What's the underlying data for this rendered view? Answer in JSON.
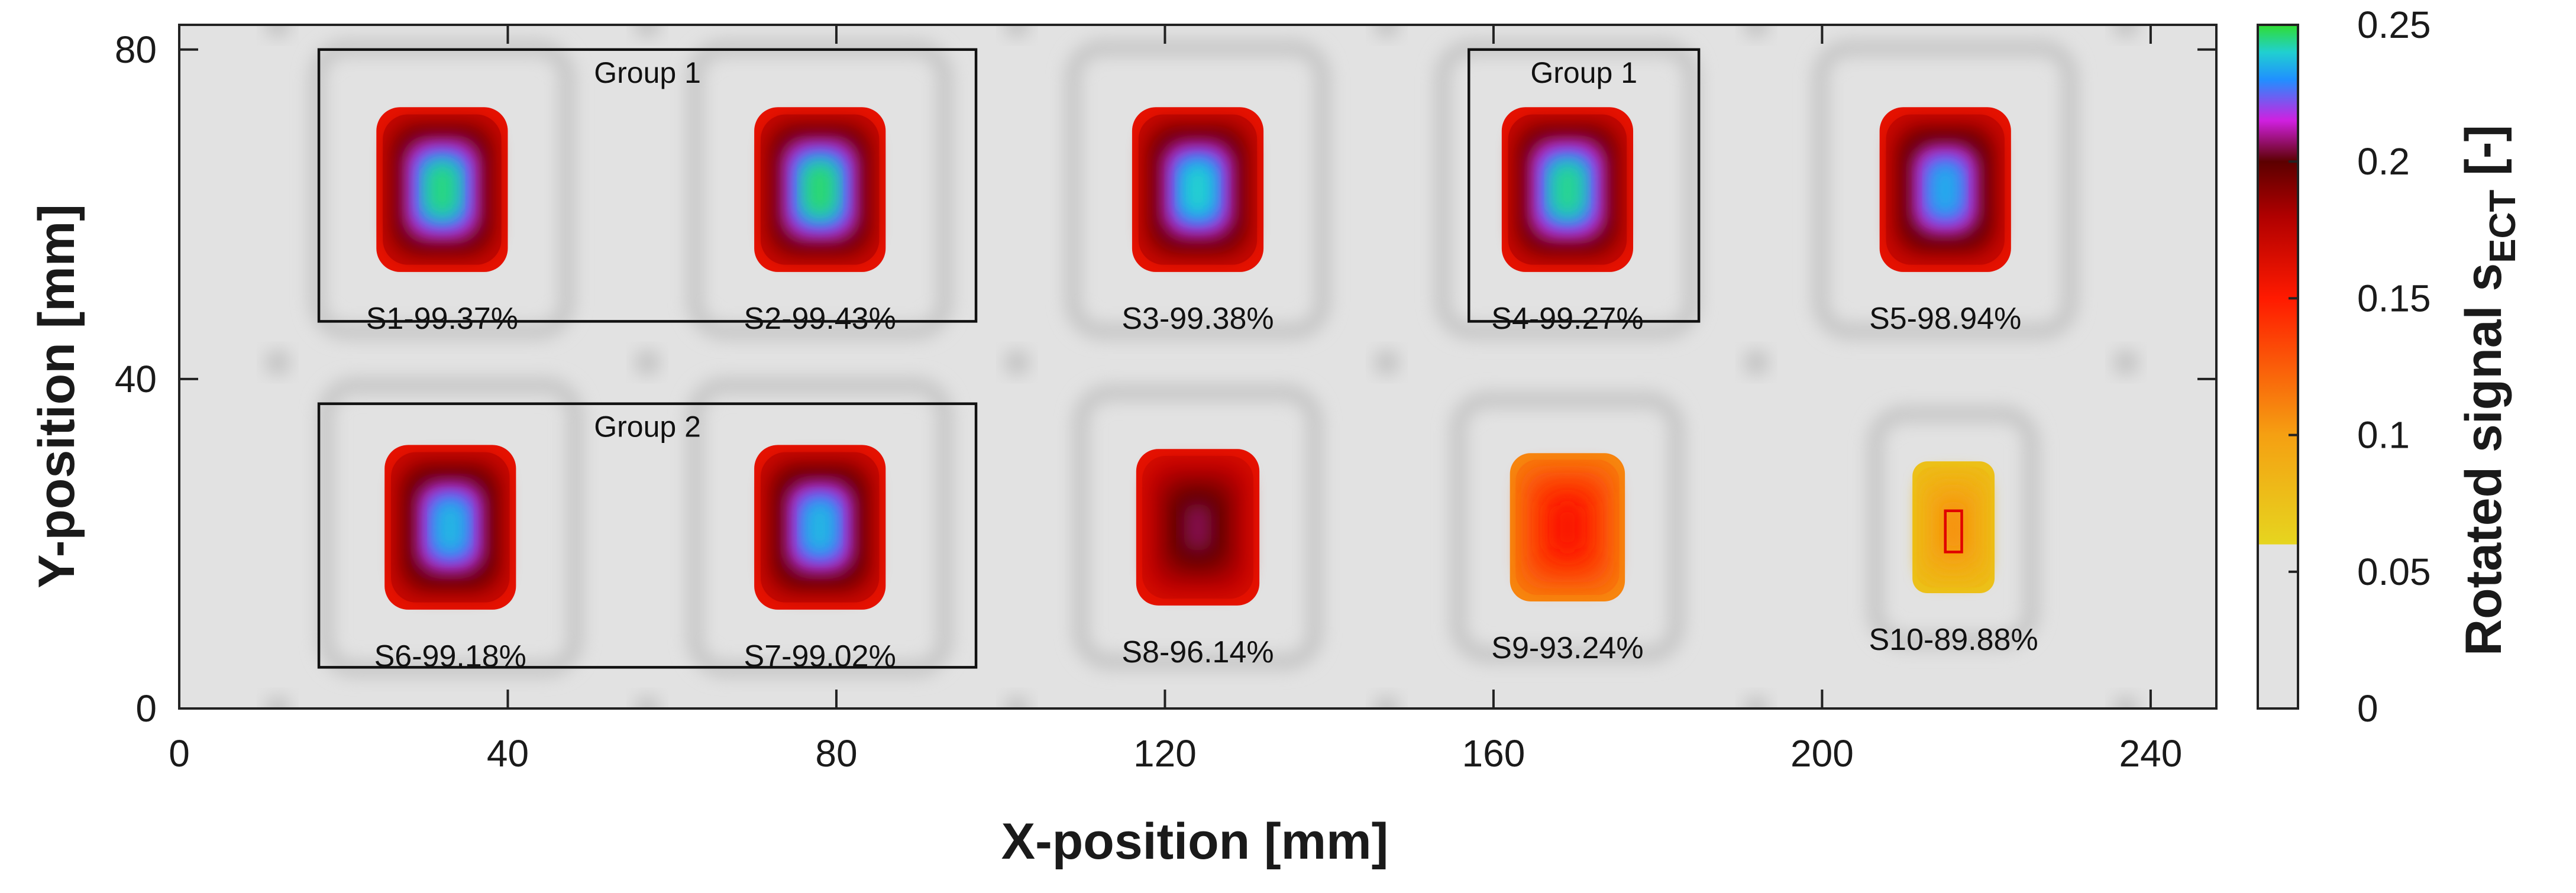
{
  "chart_data": {
    "type": "heatmap",
    "title": "",
    "xlabel": "X-position [mm]",
    "ylabel": "Y-position [mm]",
    "xlim": [
      0,
      248
    ],
    "ylim": [
      0,
      83
    ],
    "xticks": [
      0,
      40,
      80,
      120,
      160,
      200,
      240
    ],
    "yticks": [
      0,
      40,
      80
    ],
    "grid": false,
    "colorbar": {
      "label_main": "Rotated signal s",
      "label_sub": "ECT",
      "label_unit": " [-]",
      "range": [
        0,
        0.25
      ],
      "ticks": [
        "0",
        "0.05",
        "0.1",
        "0.15",
        "0.2",
        "0.25"
      ],
      "threshold": 0.06,
      "low_color": "#e2e2e2",
      "stops": [
        {
          "v": 0.06,
          "color": "#e6d51f"
        },
        {
          "v": 0.1,
          "color": "#f5a012"
        },
        {
          "v": 0.15,
          "color": "#ff1a00"
        },
        {
          "v": 0.18,
          "color": "#b00000"
        },
        {
          "v": 0.2,
          "color": "#5c0000"
        },
        {
          "v": 0.215,
          "color": "#d020e0"
        },
        {
          "v": 0.23,
          "color": "#2090ff"
        },
        {
          "v": 0.24,
          "color": "#20d0d0"
        },
        {
          "v": 0.25,
          "color": "#30dd30"
        }
      ]
    },
    "samples": [
      {
        "id": "S1",
        "label": "S1-99.37%",
        "x": 32,
        "y": 63,
        "w": 16,
        "h": 20,
        "peak": 0.245,
        "edge": 0.16
      },
      {
        "id": "S2",
        "label": "S2-99.43%",
        "x": 78,
        "y": 63,
        "w": 16,
        "h": 20,
        "peak": 0.246,
        "edge": 0.16
      },
      {
        "id": "S3",
        "label": "S3-99.38%",
        "x": 124,
        "y": 63,
        "w": 16,
        "h": 20,
        "peak": 0.24,
        "edge": 0.16
      },
      {
        "id": "S4",
        "label": "S4-99.27%",
        "x": 169,
        "y": 63,
        "w": 16,
        "h": 20,
        "peak": 0.244,
        "edge": 0.16
      },
      {
        "id": "S5",
        "label": "S5-98.94%",
        "x": 215,
        "y": 63,
        "w": 16,
        "h": 20,
        "peak": 0.234,
        "edge": 0.16
      },
      {
        "id": "S6",
        "label": "S6-99.18%",
        "x": 33,
        "y": 22,
        "w": 16,
        "h": 20,
        "peak": 0.236,
        "edge": 0.16
      },
      {
        "id": "S7",
        "label": "S7-99.02%",
        "x": 78,
        "y": 22,
        "w": 16,
        "h": 20,
        "peak": 0.236,
        "edge": 0.16
      },
      {
        "id": "S8",
        "label": "S8-96.14%",
        "x": 124,
        "y": 22,
        "w": 15,
        "h": 19,
        "peak": 0.205,
        "edge": 0.16
      },
      {
        "id": "S9",
        "label": "S9-93.24%",
        "x": 169,
        "y": 22,
        "w": 14,
        "h": 18,
        "peak": 0.152,
        "edge": 0.11
      },
      {
        "id": "S10",
        "label": "S10-89.88%",
        "x": 216,
        "y": 22,
        "w": 10,
        "h": 16,
        "peak": 0.105,
        "edge": 0.075
      }
    ],
    "annotations": [
      {
        "label": "Group 1",
        "x0": 17,
        "x1": 97,
        "y0": 47,
        "y1": 80
      },
      {
        "label": "Group 1",
        "x0": 157,
        "x1": 185,
        "y0": 47,
        "y1": 80
      },
      {
        "label": "Group 2",
        "x0": 17,
        "x1": 97,
        "y0": 5,
        "y1": 37
      }
    ],
    "defect_marker": {
      "x0": 215,
      "x1": 217,
      "y0": 19,
      "y1": 24
    },
    "holder_marks": {
      "x": [
        12,
        57,
        102,
        147,
        192,
        237
      ],
      "y": [
        0,
        42,
        83
      ]
    }
  }
}
